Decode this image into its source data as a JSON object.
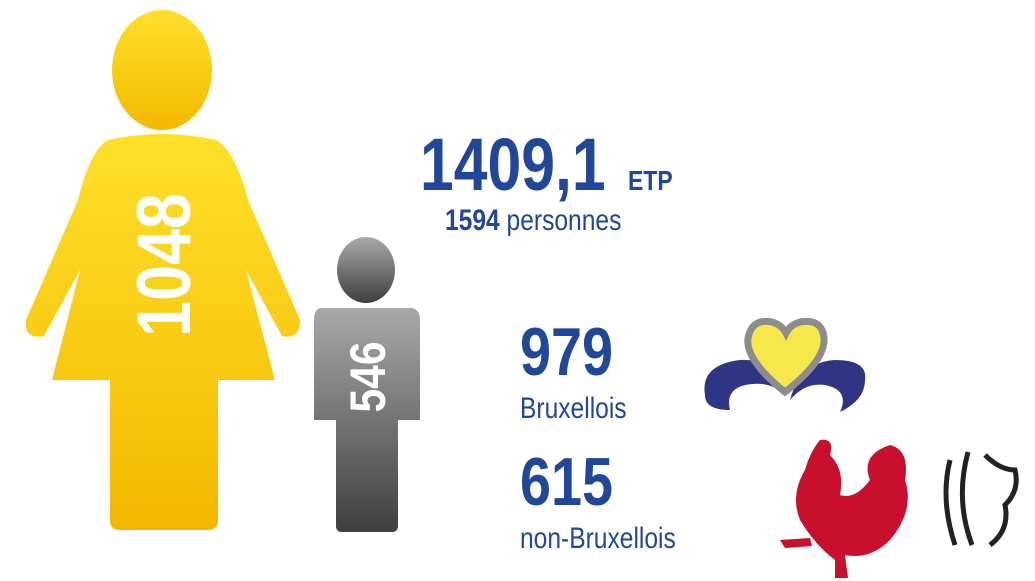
{
  "women": {
    "count": 1048
  },
  "men": {
    "count": 546
  },
  "total": {
    "fte": "1409,1",
    "fte_unit": "ETP",
    "persons": 1594,
    "persons_label": "personnes"
  },
  "residence": [
    {
      "count": 979,
      "label": "Bruxellois"
    },
    {
      "count": 615,
      "label": "non-Bruxellois"
    }
  ]
}
